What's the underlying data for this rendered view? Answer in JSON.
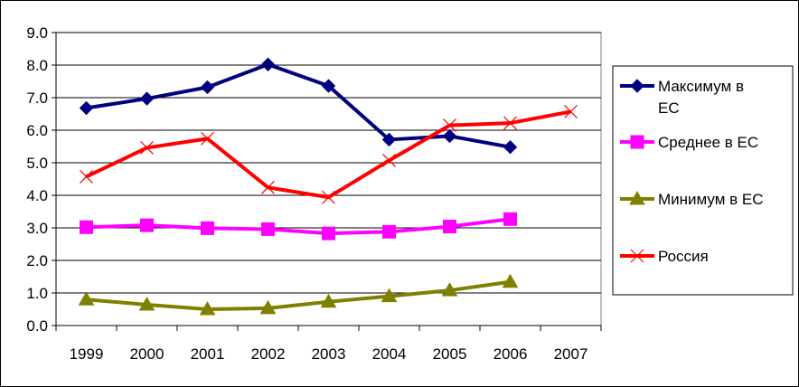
{
  "chart_data": {
    "type": "line",
    "categories": [
      "1999",
      "2000",
      "2001",
      "2002",
      "2003",
      "2004",
      "2005",
      "2006",
      "2007"
    ],
    "ylim": [
      0,
      9
    ],
    "yticks": [
      "0.0",
      "1.0",
      "2.0",
      "3.0",
      "4.0",
      "5.0",
      "6.0",
      "7.0",
      "8.0",
      "9.0"
    ],
    "grid": true,
    "legend_position": "right",
    "series": [
      {
        "name": "Максимум в ЕС",
        "legend_lines": [
          "Максимум в",
          "ЕС"
        ],
        "color": "#000080",
        "marker": "diamond",
        "values": [
          6.68,
          6.97,
          7.32,
          8.02,
          7.36,
          5.71,
          5.82,
          5.48,
          null
        ]
      },
      {
        "name": "Среднее в ЕС",
        "legend_lines": [
          "Среднее в ЕС"
        ],
        "color": "#FF00FF",
        "marker": "square",
        "values": [
          3.02,
          3.08,
          2.99,
          2.96,
          2.83,
          2.88,
          3.04,
          3.27,
          null
        ]
      },
      {
        "name": "Минимум в ЕС",
        "legend_lines": [
          "Минимум в ЕС"
        ],
        "color": "#808000",
        "marker": "triangle",
        "values": [
          0.8,
          0.64,
          0.5,
          0.53,
          0.73,
          0.9,
          1.08,
          1.34,
          null
        ]
      },
      {
        "name": "Россия",
        "legend_lines": [
          "Россия"
        ],
        "color": "#FF0000",
        "marker": "x",
        "values": [
          4.57,
          5.46,
          5.74,
          4.24,
          3.94,
          5.07,
          6.15,
          6.22,
          6.57
        ]
      }
    ]
  }
}
